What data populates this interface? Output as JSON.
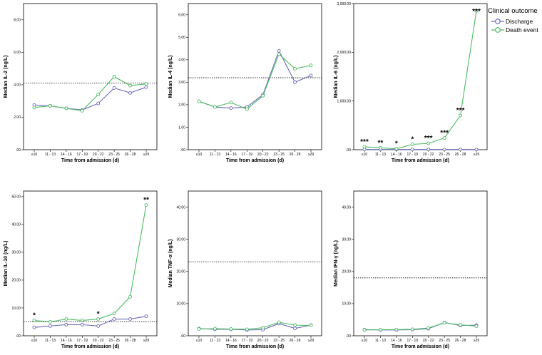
{
  "legend": {
    "title": "Clinical outcome",
    "items": [
      {
        "label": "Discharge",
        "color": "#6a6ab8"
      },
      {
        "label": "Death event",
        "color": "#4cbb64"
      }
    ]
  },
  "chart_data": [
    {
      "type": "line",
      "xlabel": "Time from admission (d)",
      "ylabel": "Median IL-2 (ng/L)",
      "categories": [
        "≤10",
        "11 - 13",
        "14 - 16",
        "17 - 19",
        "20 - 22",
        "23 - 25",
        "26 - 28",
        "≥29"
      ],
      "ylim": [
        0,
        9
      ],
      "yticks": [
        0,
        2,
        4,
        6,
        8
      ],
      "ytick_labels": [
        ".00",
        "2.00",
        "4.00",
        "6.00",
        "8.00"
      ],
      "reference_line": 4.1,
      "series": [
        {
          "name": "Discharge",
          "values": [
            2.75,
            2.7,
            2.55,
            2.45,
            2.85,
            3.8,
            3.5,
            3.85
          ]
        },
        {
          "name": "Death event",
          "values": [
            2.6,
            2.7,
            2.55,
            2.4,
            3.4,
            4.5,
            3.95,
            4.05
          ]
        }
      ],
      "significance": []
    },
    {
      "type": "line",
      "xlabel": "Time from admission (d)",
      "ylabel": "Median IL-4 (ng/L)",
      "categories": [
        "≤10",
        "11 - 13",
        "14 - 16",
        "17 - 19",
        "20 - 22",
        "23 - 25",
        "26 - 28",
        "≥29"
      ],
      "ylim": [
        0,
        6.5
      ],
      "yticks": [
        0,
        1,
        2,
        3,
        4,
        5,
        6
      ],
      "ytick_labels": [
        ".00",
        "1.00",
        "2.00",
        "3.00",
        "4.00",
        "5.00",
        "6.00"
      ],
      "reference_line": 3.2,
      "series": [
        {
          "name": "Discharge",
          "values": [
            2.15,
            1.9,
            1.85,
            1.9,
            2.45,
            4.4,
            3.0,
            3.3
          ]
        },
        {
          "name": "Death event",
          "values": [
            2.15,
            1.9,
            2.1,
            1.8,
            2.4,
            4.25,
            3.6,
            3.75
          ]
        }
      ],
      "significance": []
    },
    {
      "type": "line",
      "xlabel": "Time from admission (d)",
      "ylabel": "Median IL-6 (ng/L)",
      "categories": [
        "≤10",
        "11 - 13",
        "14 - 16",
        "17 - 19",
        "20 - 22",
        "23 - 25",
        "26 - 28",
        "≥29"
      ],
      "ylim": [
        0,
        3000
      ],
      "yticks": [
        0,
        1000,
        2000,
        3000
      ],
      "ytick_labels": [
        ".00",
        "1,000.00",
        "2,000.00",
        "3,000.00"
      ],
      "reference_line": null,
      "series": [
        {
          "name": "Discharge",
          "values": [
            5,
            5,
            5,
            5,
            5,
            5,
            5,
            5
          ]
        },
        {
          "name": "Death event",
          "values": [
            60,
            40,
            20,
            110,
            130,
            240,
            700,
            2850
          ]
        }
      ],
      "significance": [
        "***",
        "**",
        "*",
        "*",
        "***",
        "***",
        "***",
        "***"
      ]
    },
    {
      "type": "line",
      "xlabel": "Time from admission (d)",
      "ylabel": "Median IL-10 (ng/L)",
      "categories": [
        "≤10",
        "11 - 13",
        "14 - 16",
        "17 - 19",
        "20 - 22",
        "23 - 25",
        "26 - 28",
        "≥29"
      ],
      "ylim": [
        0,
        52
      ],
      "yticks": [
        0,
        10,
        20,
        30,
        40,
        50
      ],
      "ytick_labels": [
        ".00",
        "10.00",
        "20.00",
        "30.00",
        "40.00",
        "50.00"
      ],
      "reference_line": 5,
      "series": [
        {
          "name": "Discharge",
          "values": [
            3.0,
            3.5,
            4.0,
            4.0,
            3.5,
            6.0,
            6.0,
            7.0
          ]
        },
        {
          "name": "Death event",
          "values": [
            5.5,
            5.0,
            6.0,
            5.5,
            6.0,
            8.0,
            14.0,
            47.0
          ]
        }
      ],
      "significance": [
        "*",
        "",
        "",
        "",
        "*",
        "",
        "",
        "**"
      ]
    },
    {
      "type": "line",
      "xlabel": "Time from admission (d)",
      "ylabel": "Median TNF-α (ng/L)",
      "categories": [
        "≤10",
        "11 - 13",
        "14 - 16",
        "17 - 19",
        "20 - 22",
        "23 - 25",
        "26 - 28",
        "≥29"
      ],
      "ylim": [
        0,
        45
      ],
      "yticks": [
        0,
        10,
        20,
        30,
        40
      ],
      "ytick_labels": [
        ".00",
        "10.00",
        "20.00",
        "30.00",
        "40.00"
      ],
      "reference_line": 23,
      "series": [
        {
          "name": "Discharge",
          "values": [
            2.2,
            2.0,
            2.0,
            1.8,
            1.9,
            3.8,
            2.3,
            3.3
          ]
        },
        {
          "name": "Death event",
          "values": [
            2.1,
            2.2,
            2.1,
            2.0,
            2.5,
            4.2,
            3.3,
            3.2
          ]
        }
      ],
      "significance": []
    },
    {
      "type": "line",
      "xlabel": "Time from admission (d)",
      "ylabel": "Median IFN-γ (ng/L)",
      "categories": [
        "≤10",
        "11 - 13",
        "14 - 16",
        "17 - 19",
        "20 - 22",
        "23 - 25",
        "26 - 28",
        "≥29"
      ],
      "ylim": [
        0,
        45
      ],
      "yticks": [
        0,
        10,
        20,
        30,
        40
      ],
      "ytick_labels": [
        ".00",
        "10.00",
        "20.00",
        "30.00",
        "40.00"
      ],
      "reference_line": 18,
      "series": [
        {
          "name": "Discharge",
          "values": [
            1.9,
            1.8,
            1.8,
            1.9,
            2.2,
            4.1,
            3.2,
            3.3
          ]
        },
        {
          "name": "Death event",
          "values": [
            1.8,
            1.9,
            1.9,
            2.0,
            2.4,
            4.0,
            3.4,
            3.0
          ]
        }
      ],
      "significance": []
    }
  ]
}
